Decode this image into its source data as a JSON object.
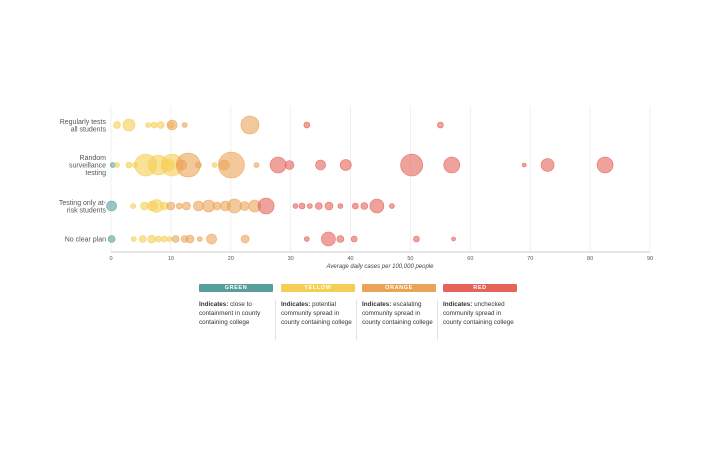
{
  "chart_data": {
    "type": "scatter",
    "xlabel": "Average daily cases per 100,000 people",
    "xlim": [
      0,
      90
    ],
    "xticks": [
      0,
      10,
      20,
      30,
      40,
      50,
      60,
      70,
      80,
      90
    ],
    "grid": true,
    "rows": [
      "Regularly tests all students",
      "Random surveillance testing",
      "Testing only at-risk students",
      "No clear plan"
    ],
    "colors": {
      "green": "#5a9e9b",
      "yellow": "#f5cf54",
      "orange": "#eba358",
      "red": "#e5645a"
    },
    "series": [
      {
        "row": 0,
        "points": [
          {
            "x": 1.0,
            "size": 3.5,
            "level": "yellow"
          },
          {
            "x": 3.0,
            "size": 6,
            "level": "yellow"
          },
          {
            "x": 6.2,
            "size": 2.5,
            "level": "yellow"
          },
          {
            "x": 7.2,
            "size": 3,
            "level": "yellow"
          },
          {
            "x": 8.3,
            "size": 3.5,
            "level": "yellow"
          },
          {
            "x": 10.0,
            "size": 3,
            "level": "yellow"
          },
          {
            "x": 10.2,
            "size": 5,
            "level": "orange"
          },
          {
            "x": 12.3,
            "size": 2.5,
            "level": "orange"
          },
          {
            "x": 23.2,
            "size": 9,
            "level": "orange"
          },
          {
            "x": 32.7,
            "size": 3,
            "level": "red"
          },
          {
            "x": 55.0,
            "size": 3,
            "level": "red"
          }
        ]
      },
      {
        "row": 1,
        "points": [
          {
            "x": 0.3,
            "size": 2.5,
            "level": "green"
          },
          {
            "x": 1.0,
            "size": 2.5,
            "level": "yellow"
          },
          {
            "x": 3.0,
            "size": 3,
            "level": "yellow"
          },
          {
            "x": 4.0,
            "size": 2.5,
            "level": "yellow"
          },
          {
            "x": 5.8,
            "size": 11,
            "level": "yellow"
          },
          {
            "x": 7.9,
            "size": 10,
            "level": "yellow"
          },
          {
            "x": 9.6,
            "size": 6,
            "level": "yellow"
          },
          {
            "x": 10.2,
            "size": 11,
            "level": "yellow"
          },
          {
            "x": 11.8,
            "size": 5,
            "level": "orange"
          },
          {
            "x": 12.9,
            "size": 12,
            "level": "orange"
          },
          {
            "x": 14.6,
            "size": 3,
            "level": "orange"
          },
          {
            "x": 17.3,
            "size": 2.5,
            "level": "yellow"
          },
          {
            "x": 18.9,
            "size": 5,
            "level": "orange"
          },
          {
            "x": 20.1,
            "size": 13,
            "level": "orange"
          },
          {
            "x": 24.3,
            "size": 2.5,
            "level": "orange"
          },
          {
            "x": 27.9,
            "size": 8,
            "level": "red"
          },
          {
            "x": 29.8,
            "size": 4.5,
            "level": "red"
          },
          {
            "x": 35.0,
            "size": 5,
            "level": "red"
          },
          {
            "x": 39.2,
            "size": 5.5,
            "level": "red"
          },
          {
            "x": 50.2,
            "size": 11,
            "level": "red"
          },
          {
            "x": 56.9,
            "size": 8,
            "level": "red"
          },
          {
            "x": 69.0,
            "size": 2,
            "level": "red"
          },
          {
            "x": 72.9,
            "size": 6.5,
            "level": "red"
          },
          {
            "x": 82.5,
            "size": 8,
            "level": "red"
          }
        ]
      },
      {
        "row": 2,
        "points": [
          {
            "x": 0.1,
            "size": 5,
            "level": "green"
          },
          {
            "x": 3.7,
            "size": 2.5,
            "level": "yellow"
          },
          {
            "x": 5.6,
            "size": 4,
            "level": "yellow"
          },
          {
            "x": 6.9,
            "size": 5,
            "level": "yellow"
          },
          {
            "x": 7.6,
            "size": 6.5,
            "level": "yellow"
          },
          {
            "x": 8.9,
            "size": 4,
            "level": "yellow"
          },
          {
            "x": 10.0,
            "size": 4,
            "level": "orange"
          },
          {
            "x": 11.4,
            "size": 3,
            "level": "orange"
          },
          {
            "x": 12.6,
            "size": 4,
            "level": "orange"
          },
          {
            "x": 14.6,
            "size": 5,
            "level": "orange"
          },
          {
            "x": 16.3,
            "size": 6,
            "level": "orange"
          },
          {
            "x": 17.7,
            "size": 4,
            "level": "orange"
          },
          {
            "x": 19.1,
            "size": 5,
            "level": "orange"
          },
          {
            "x": 20.6,
            "size": 7,
            "level": "orange"
          },
          {
            "x": 22.3,
            "size": 4.5,
            "level": "orange"
          },
          {
            "x": 24.0,
            "size": 6,
            "level": "orange"
          },
          {
            "x": 25.9,
            "size": 8,
            "level": "red"
          },
          {
            "x": 30.8,
            "size": 2.5,
            "level": "red"
          },
          {
            "x": 31.9,
            "size": 3,
            "level": "red"
          },
          {
            "x": 33.2,
            "size": 2.5,
            "level": "red"
          },
          {
            "x": 34.7,
            "size": 3.5,
            "level": "red"
          },
          {
            "x": 36.4,
            "size": 4,
            "level": "red"
          },
          {
            "x": 38.3,
            "size": 2.5,
            "level": "red"
          },
          {
            "x": 40.8,
            "size": 3,
            "level": "red"
          },
          {
            "x": 42.3,
            "size": 3.5,
            "level": "red"
          },
          {
            "x": 44.4,
            "size": 7,
            "level": "red"
          },
          {
            "x": 46.9,
            "size": 2.5,
            "level": "red"
          }
        ]
      },
      {
        "row": 3,
        "points": [
          {
            "x": 0.1,
            "size": 3.5,
            "level": "green"
          },
          {
            "x": 3.8,
            "size": 2.5,
            "level": "yellow"
          },
          {
            "x": 5.3,
            "size": 3.5,
            "level": "yellow"
          },
          {
            "x": 6.8,
            "size": 4,
            "level": "yellow"
          },
          {
            "x": 7.9,
            "size": 3,
            "level": "yellow"
          },
          {
            "x": 8.9,
            "size": 3,
            "level": "yellow"
          },
          {
            "x": 9.8,
            "size": 2.5,
            "level": "yellow"
          },
          {
            "x": 10.8,
            "size": 3.5,
            "level": "orange"
          },
          {
            "x": 12.3,
            "size": 3.5,
            "level": "orange"
          },
          {
            "x": 13.2,
            "size": 4,
            "level": "orange"
          },
          {
            "x": 14.8,
            "size": 2.5,
            "level": "orange"
          },
          {
            "x": 16.8,
            "size": 5,
            "level": "orange"
          },
          {
            "x": 22.4,
            "size": 4,
            "level": "orange"
          },
          {
            "x": 32.7,
            "size": 2.5,
            "level": "red"
          },
          {
            "x": 36.3,
            "size": 7,
            "level": "red"
          },
          {
            "x": 38.3,
            "size": 3.5,
            "level": "red"
          },
          {
            "x": 40.6,
            "size": 3,
            "level": "red"
          },
          {
            "x": 51.0,
            "size": 3,
            "level": "red"
          },
          {
            "x": 57.2,
            "size": 2,
            "level": "red"
          }
        ]
      }
    ]
  },
  "legend": [
    {
      "level": "green",
      "label": "GREEN",
      "prefix": "Indicates:",
      "text": "close to containment in county containing college"
    },
    {
      "level": "yellow",
      "label": "YELLOW",
      "prefix": "Indicates:",
      "text": "potential community spread in county containing college"
    },
    {
      "level": "orange",
      "label": "ORANGE",
      "prefix": "Indicates:",
      "text": "escalating community spread in county containing college"
    },
    {
      "level": "red",
      "label": "RED",
      "prefix": "Indicates:",
      "text": "unchecked community spread in county containing college"
    }
  ]
}
